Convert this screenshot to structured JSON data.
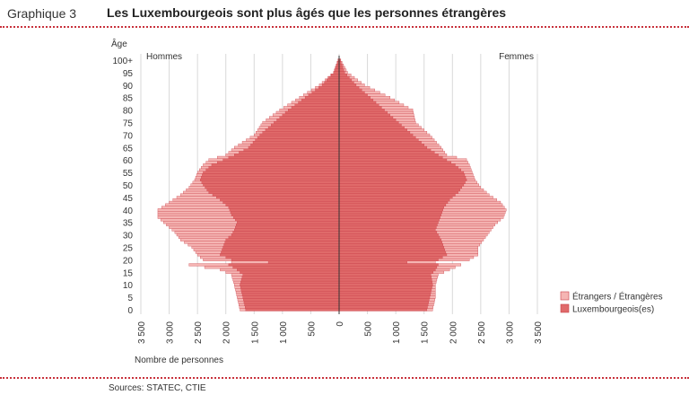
{
  "header": {
    "number": "Graphique 3",
    "title": "Les Luxembourgeois sont plus âgés que les personnes étrangères"
  },
  "source": "Sources: STATEC, CTIE",
  "colors": {
    "foreign": "#f5b5b3",
    "lux": "#e06a6a",
    "stroke": "#c9414a",
    "accent": "#c8323c"
  },
  "chart_data": {
    "type": "population-pyramid",
    "ylabel": "Âge",
    "xlabel": "Nombre de personnes",
    "left_label": "Hommes",
    "right_label": "Femmes",
    "y_ticks": [
      "0",
      "5",
      "10",
      "15",
      "20",
      "25",
      "30",
      "35",
      "40",
      "45",
      "50",
      "55",
      "60",
      "65",
      "70",
      "75",
      "80",
      "85",
      "90",
      "95",
      "100+"
    ],
    "x_ticks": [
      "3 500",
      "3 000",
      "2 500",
      "2 000",
      "1 500",
      "1 000",
      "500",
      "0",
      "500",
      "1 000",
      "1 500",
      "2 000",
      "2 500",
      "3 000",
      "3 500"
    ],
    "xlim": [
      -3500,
      3500
    ],
    "ages": {
      "min": 0,
      "max": 100
    },
    "legend": {
      "position": "right",
      "entries": [
        "Étrangers / Étrangères",
        "Luxembourgeois(es)"
      ]
    },
    "series": [
      {
        "name": "Luxembourgeois(es)",
        "side": "Hommes",
        "keypoints": [
          [
            0,
            1650
          ],
          [
            5,
            1700
          ],
          [
            10,
            1750
          ],
          [
            14,
            1700
          ],
          [
            16,
            1800
          ],
          [
            18,
            1950
          ],
          [
            19,
            1250
          ],
          [
            20,
            1900
          ],
          [
            22,
            2100
          ],
          [
            25,
            2050
          ],
          [
            28,
            2000
          ],
          [
            30,
            1900
          ],
          [
            32,
            1850
          ],
          [
            35,
            1800
          ],
          [
            38,
            1900
          ],
          [
            41,
            1950
          ],
          [
            44,
            2100
          ],
          [
            47,
            2300
          ],
          [
            50,
            2400
          ],
          [
            52,
            2450
          ],
          [
            55,
            2400
          ],
          [
            58,
            2250
          ],
          [
            60,
            2050
          ],
          [
            62,
            1850
          ],
          [
            65,
            1600
          ],
          [
            70,
            1400
          ],
          [
            75,
            1150
          ],
          [
            80,
            900
          ],
          [
            85,
            600
          ],
          [
            90,
            300
          ],
          [
            95,
            100
          ],
          [
            100,
            20
          ]
        ]
      },
      {
        "name": "Étrangers / Étrangères",
        "side": "Hommes",
        "keypoints": [
          [
            0,
            1750
          ],
          [
            5,
            1800
          ],
          [
            10,
            1850
          ],
          [
            14,
            1900
          ],
          [
            16,
            2100
          ],
          [
            18,
            2650
          ],
          [
            19,
            1900
          ],
          [
            20,
            2400
          ],
          [
            22,
            2500
          ],
          [
            25,
            2600
          ],
          [
            28,
            2800
          ],
          [
            31,
            2900
          ],
          [
            34,
            3050
          ],
          [
            37,
            3200
          ],
          [
            40,
            3200
          ],
          [
            43,
            3000
          ],
          [
            46,
            2800
          ],
          [
            49,
            2650
          ],
          [
            52,
            2550
          ],
          [
            55,
            2500
          ],
          [
            58,
            2400
          ],
          [
            60,
            2300
          ],
          [
            62,
            2000
          ],
          [
            65,
            1850
          ],
          [
            70,
            1500
          ],
          [
            75,
            1350
          ],
          [
            80,
            1050
          ],
          [
            85,
            700
          ],
          [
            90,
            350
          ],
          [
            95,
            100
          ],
          [
            100,
            20
          ]
        ]
      },
      {
        "name": "Luxembourgeois(es)",
        "side": "Femmes",
        "keypoints": [
          [
            0,
            1550
          ],
          [
            5,
            1600
          ],
          [
            10,
            1650
          ],
          [
            14,
            1620
          ],
          [
            16,
            1700
          ],
          [
            18,
            1750
          ],
          [
            19,
            1200
          ],
          [
            20,
            1750
          ],
          [
            22,
            1900
          ],
          [
            25,
            1850
          ],
          [
            28,
            1800
          ],
          [
            30,
            1750
          ],
          [
            32,
            1700
          ],
          [
            35,
            1750
          ],
          [
            38,
            1800
          ],
          [
            41,
            1850
          ],
          [
            44,
            1950
          ],
          [
            47,
            2100
          ],
          [
            50,
            2200
          ],
          [
            52,
            2250
          ],
          [
            55,
            2200
          ],
          [
            58,
            2050
          ],
          [
            60,
            1900
          ],
          [
            62,
            1750
          ],
          [
            65,
            1550
          ],
          [
            70,
            1300
          ],
          [
            75,
            1050
          ],
          [
            80,
            800
          ],
          [
            85,
            550
          ],
          [
            90,
            300
          ],
          [
            95,
            100
          ],
          [
            100,
            20
          ]
        ]
      },
      {
        "name": "Étrangers / Étrangères",
        "side": "Femmes",
        "keypoints": [
          [
            0,
            1650
          ],
          [
            5,
            1700
          ],
          [
            10,
            1700
          ],
          [
            14,
            1750
          ],
          [
            16,
            1950
          ],
          [
            18,
            2150
          ],
          [
            19,
            1700
          ],
          [
            20,
            2300
          ],
          [
            22,
            2450
          ],
          [
            25,
            2450
          ],
          [
            28,
            2550
          ],
          [
            31,
            2650
          ],
          [
            34,
            2750
          ],
          [
            37,
            2900
          ],
          [
            40,
            2950
          ],
          [
            43,
            2850
          ],
          [
            46,
            2650
          ],
          [
            49,
            2500
          ],
          [
            52,
            2400
          ],
          [
            55,
            2350
          ],
          [
            58,
            2300
          ],
          [
            60,
            2250
          ],
          [
            62,
            1900
          ],
          [
            65,
            1800
          ],
          [
            70,
            1600
          ],
          [
            75,
            1350
          ],
          [
            80,
            1300
          ],
          [
            85,
            900
          ],
          [
            90,
            450
          ],
          [
            95,
            150
          ],
          [
            100,
            30
          ]
        ]
      }
    ]
  }
}
